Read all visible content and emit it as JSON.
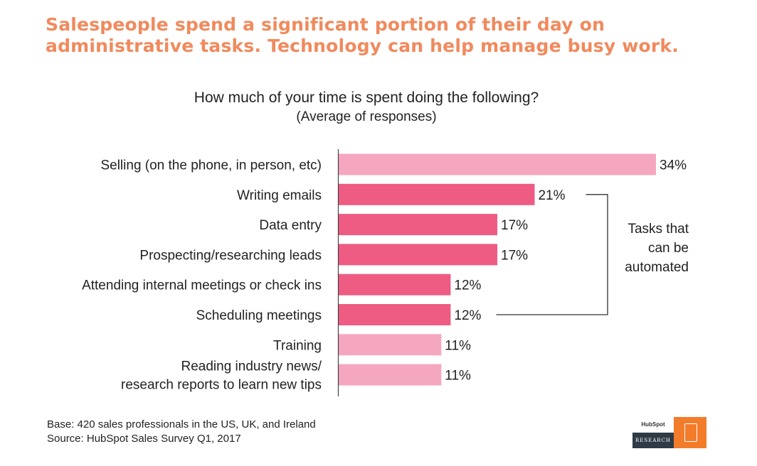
{
  "headline": {
    "line1": "Salespeople spend a significant portion of their day on",
    "line2": "administrative tasks. Technology can help manage busy work."
  },
  "colors": {
    "headline": "#f08a5d",
    "bar_light": "#f5a7bf",
    "bar_dark": "#ee5b83",
    "axis": "#444444"
  },
  "chart_data": {
    "type": "bar",
    "orientation": "horizontal",
    "title": "How much of your time is spent doing the following?",
    "subtitle": "(Average of responses)",
    "categories": [
      [
        "Selling (on the phone, in person, etc)"
      ],
      [
        "Writing emails"
      ],
      [
        "Data entry"
      ],
      [
        "Prospecting/researching leads"
      ],
      [
        "Attending internal meetings or check ins"
      ],
      [
        "Scheduling meetings"
      ],
      [
        "Training"
      ],
      [
        "Reading industry news/",
        "research reports to learn new tips"
      ]
    ],
    "values": [
      34,
      21,
      17,
      17,
      12,
      12,
      11,
      11
    ],
    "value_labels": [
      "34%",
      "21%",
      "17%",
      "17%",
      "12%",
      "12%",
      "11%",
      "11%"
    ],
    "highlighted": [
      false,
      true,
      true,
      true,
      true,
      true,
      false,
      false
    ],
    "xlim": [
      0,
      34
    ],
    "grid": false,
    "annotation": {
      "lines": [
        "Tasks that",
        "can be",
        "automated"
      ],
      "bracket_from": 1,
      "bracket_to": 5
    }
  },
  "footer": {
    "base": "Base: 420 sales professionals in the US, UK, and Ireland",
    "source": "Source: HubSpot Sales Survey Q1, 2017"
  },
  "logo": {
    "brand": "HubSpot",
    "sub": "RESEARCH"
  }
}
